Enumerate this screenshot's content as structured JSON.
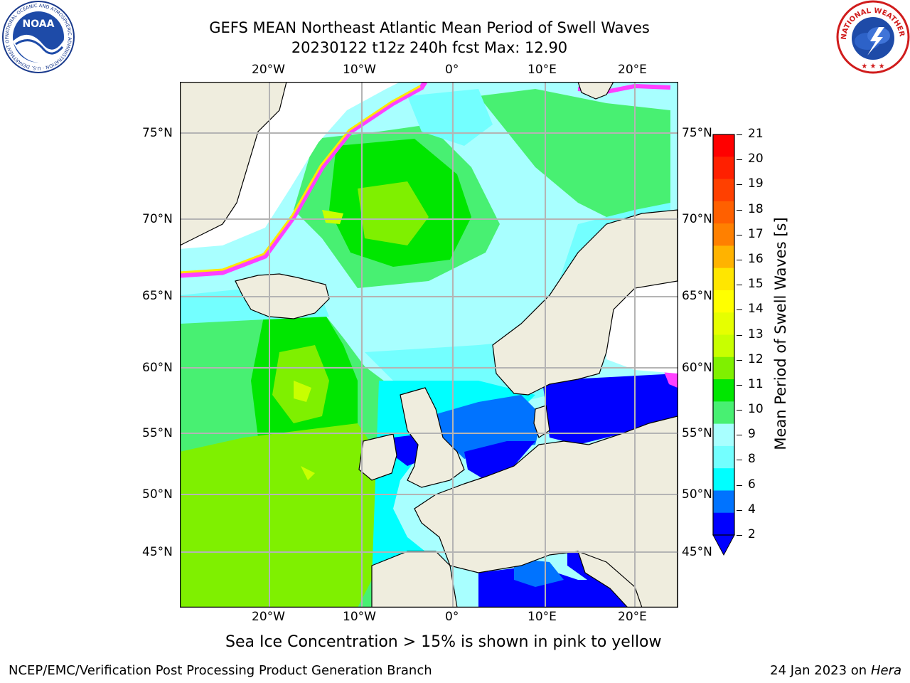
{
  "title": {
    "line1": "GEFS MEAN Northeast Atlantic Mean Period of Swell Waves",
    "line2": "20230122 t12z 240h fcst   Max: 12.90"
  },
  "map": {
    "lon_ticks": [
      "20°W",
      "10°W",
      "0°",
      "10°E",
      "20°E"
    ],
    "lat_ticks": [
      "75°N",
      "70°N",
      "65°N",
      "60°N",
      "55°N",
      "50°N",
      "45°N"
    ],
    "ocean_colors": {
      "2-4": "#0000ff",
      "4-6": "#0073ff",
      "6-8": "#00ffff",
      "8-9": "#73ffff",
      "9-10": "#a8ffff",
      "10-11": "#48f072",
      "11-12": "#00e600",
      "12-13": "#7ff000",
      "land": "#efedde",
      "ice": "#ff40ff"
    }
  },
  "colorbar": {
    "label": "Mean Period of Swell Waves [s]",
    "ticks": [
      "21",
      "20",
      "19",
      "18",
      "17",
      "16",
      "15",
      "14",
      "13",
      "12",
      "11",
      "10",
      "9",
      "8",
      "6",
      "4",
      "2"
    ],
    "colors": [
      "#ff0000",
      "#ff2000",
      "#ff4000",
      "#ff6000",
      "#ff8000",
      "#ffb300",
      "#ffe600",
      "#ffff00",
      "#e6ff00",
      "#c8ff00",
      "#7ff000",
      "#00e600",
      "#48f072",
      "#a8ffff",
      "#73ffff",
      "#00ffff",
      "#0073ff",
      "#0000ff"
    ]
  },
  "caption": "Sea Ice Concentration > 15% is shown in pink to yellow",
  "footer": {
    "left": "NCEP/EMC/Verification Post Processing Product Generation Branch",
    "date": "24 Jan 2023 on ",
    "host": "Hera"
  },
  "logos": {
    "noaa_text": "NOAA",
    "noaa_ring": "NATIONAL OCEANIC AND ATMOSPHERIC ADMINISTRATION · U.S. DEPARTMENT OF COMMERCE",
    "nws_ring": "NATIONAL WEATHER SERVICE"
  }
}
